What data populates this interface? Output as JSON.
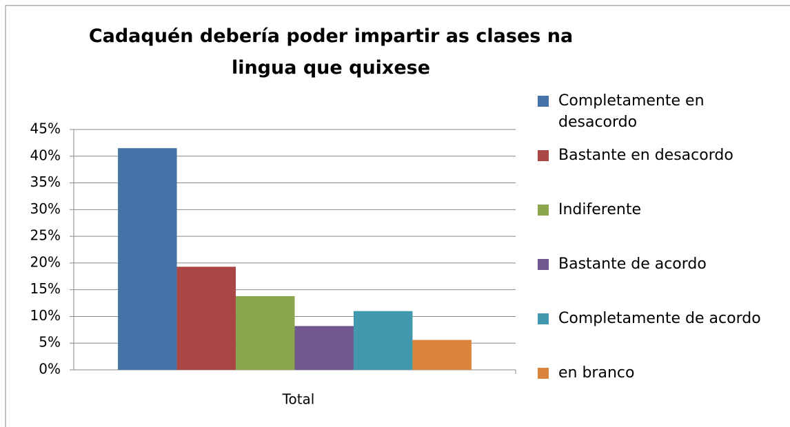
{
  "chart_data": {
    "type": "bar",
    "title": "Cadaquén debería poder impartir as clases na lingua que quixese",
    "categories": [
      "Total"
    ],
    "series": [
      {
        "name": "Completamente en desacordo",
        "color": "#4572a7",
        "values": [
          41.5
        ]
      },
      {
        "name": "Bastante en desacordo",
        "color": "#aa4643",
        "values": [
          19.3
        ]
      },
      {
        "name": "Indiferente",
        "color": "#89a54e",
        "values": [
          13.8
        ]
      },
      {
        "name": "Bastante de acordo",
        "color": "#71588f",
        "values": [
          8.2
        ]
      },
      {
        "name": "Completamente de acordo",
        "color": "#4198af",
        "values": [
          11.0
        ]
      },
      {
        "name": "en branco",
        "color": "#db843d",
        "values": [
          5.6
        ]
      }
    ],
    "ylim": [
      0,
      45
    ],
    "yticks": [
      {
        "value": 0,
        "label": "0%"
      },
      {
        "value": 5,
        "label": "5%"
      },
      {
        "value": 10,
        "label": "10%"
      },
      {
        "value": 15,
        "label": "15%"
      },
      {
        "value": 20,
        "label": "20%"
      },
      {
        "value": 25,
        "label": "25%"
      },
      {
        "value": 30,
        "label": "30%"
      },
      {
        "value": 35,
        "label": "35%"
      },
      {
        "value": 40,
        "label": "40%"
      },
      {
        "value": 45,
        "label": "45%"
      }
    ],
    "grid": true,
    "legend": "right"
  }
}
